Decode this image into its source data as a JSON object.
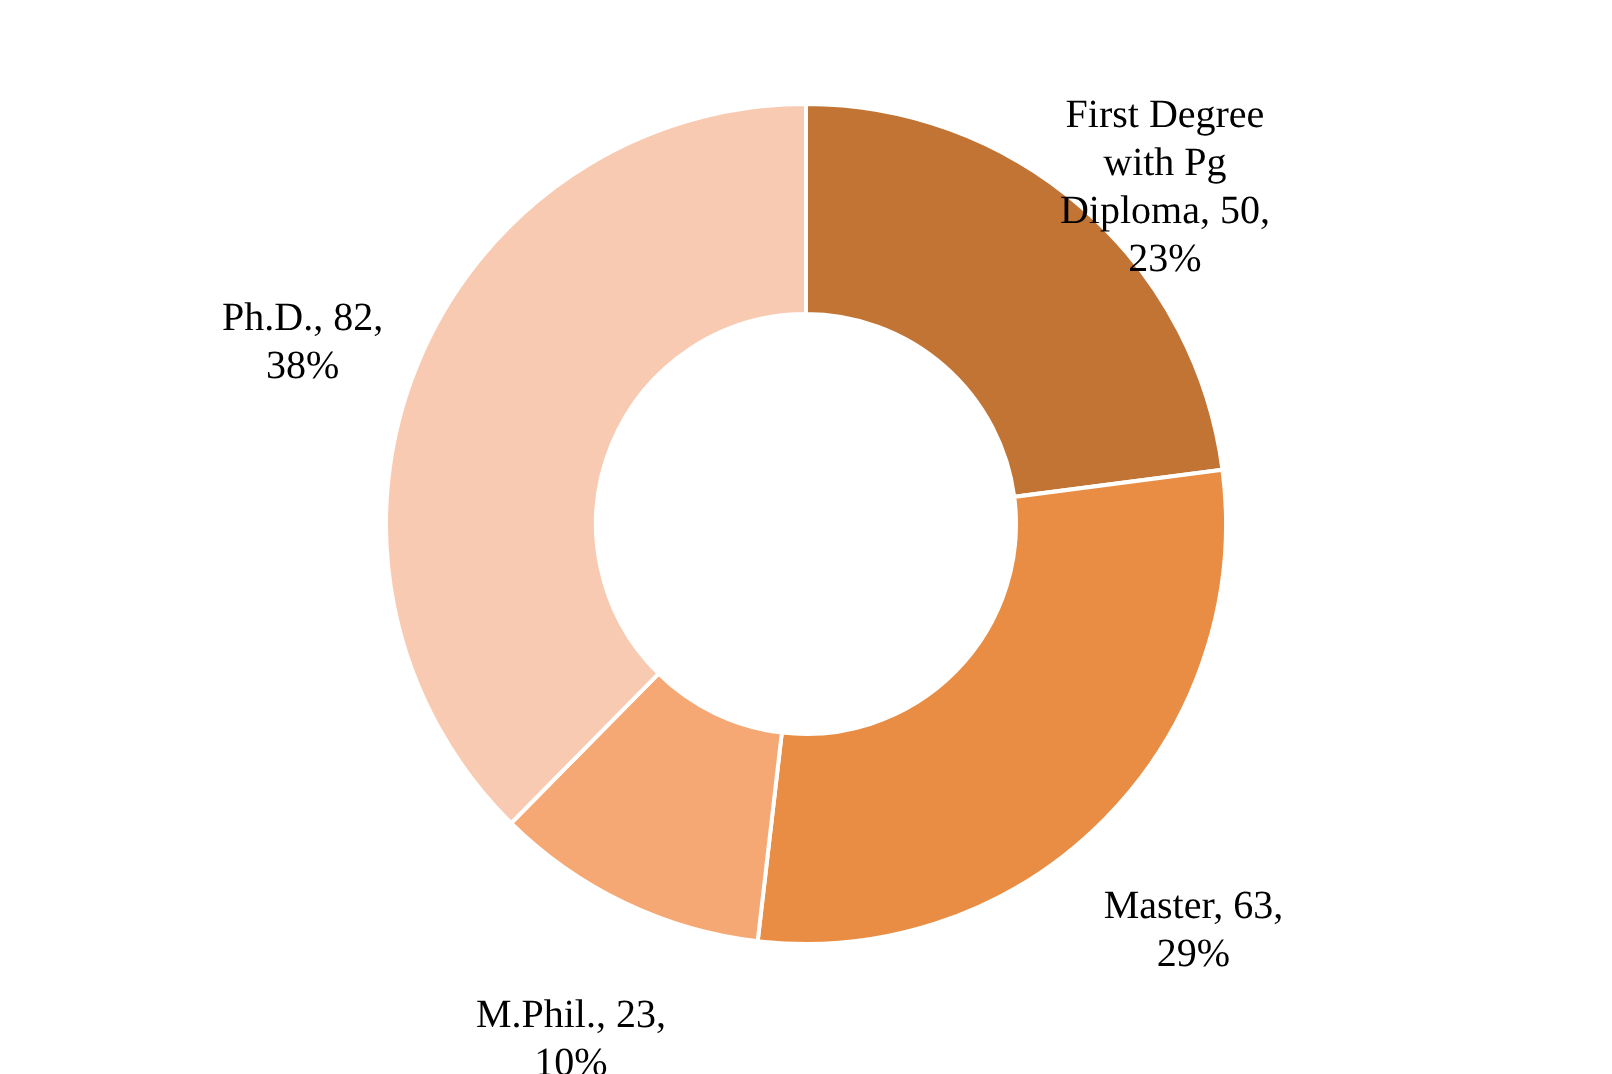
{
  "chart_data": {
    "type": "donut",
    "categories": [
      "First Degree with Pg Diploma",
      "Master",
      "M.Phil.",
      "Ph.D."
    ],
    "values": [
      50,
      63,
      23,
      82
    ],
    "colors": [
      "#c27434",
      "#e88d43",
      "#f5a874",
      "#f8cab1"
    ],
    "value_labels": [
      "50, 23%",
      "63, 29%",
      "23, 10%",
      "82, 38%"
    ]
  }
}
